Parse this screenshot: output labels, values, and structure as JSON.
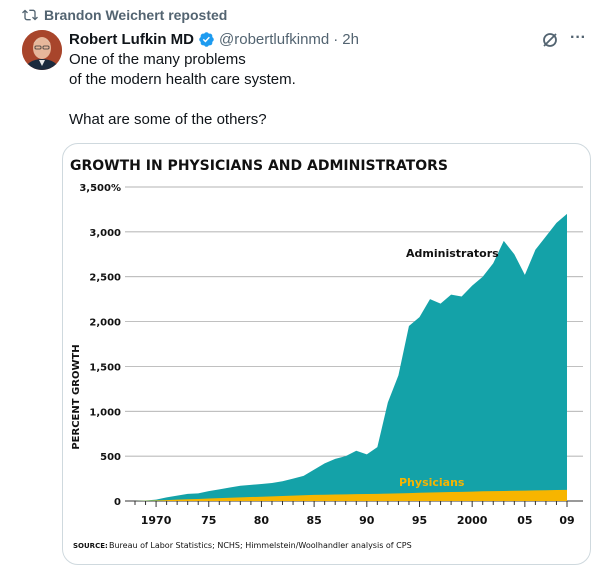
{
  "repost": {
    "text": "Brandon Weichert reposted",
    "icon": "repost-icon"
  },
  "author": {
    "name": "Robert Lufkin MD",
    "handle": "@robertlufkinmd",
    "separator": "·",
    "time": "2h",
    "verified": true
  },
  "tweet": {
    "lines": [
      "One of the many problems",
      "of the modern health care system.",
      "",
      "What are some of the others?"
    ]
  },
  "actions": {
    "grok_icon": "grok-icon",
    "more_label": "···"
  },
  "colors": {
    "admin": "#14a2a8",
    "physician": "#f7b500",
    "text_primary": "#0f1419",
    "text_secondary": "#536471",
    "verified": "#1d9bf0"
  },
  "chart_data": {
    "type": "area",
    "title": "GROWTH IN PHYSICIANS AND ADMINISTRATORS",
    "ylabel": "PERCENT GROWTH",
    "ylim": [
      0,
      3500
    ],
    "yticks": [
      "0",
      "500",
      "1,000",
      "1,500",
      "2,000",
      "2,500",
      "3,000",
      "3,500%"
    ],
    "xticks": [
      "1970",
      "75",
      "80",
      "85",
      "90",
      "95",
      "2000",
      "05",
      "09"
    ],
    "source_label": "SOURCE:",
    "source_text": "Bureau of Labor Statistics; NCHS; Himmelstein/Woolhandler analysis of CPS",
    "series": [
      {
        "name": "Administrators",
        "x": [
          1968,
          1969,
          1970,
          1971,
          1972,
          1973,
          1974,
          1975,
          1976,
          1977,
          1978,
          1979,
          1980,
          1981,
          1982,
          1983,
          1984,
          1985,
          1986,
          1987,
          1988,
          1989,
          1990,
          1991,
          1992,
          1993,
          1994,
          1995,
          1996,
          1997,
          1998,
          1999,
          2000,
          2001,
          2002,
          2003,
          2004,
          2005,
          2006,
          2007,
          2008,
          2009
        ],
        "values": [
          0,
          5,
          15,
          40,
          60,
          80,
          85,
          110,
          130,
          150,
          170,
          180,
          190,
          200,
          220,
          250,
          280,
          350,
          420,
          470,
          500,
          560,
          520,
          600,
          1100,
          1400,
          1950,
          2050,
          2250,
          2200,
          2300,
          2280,
          2400,
          2500,
          2650,
          2900,
          2750,
          2520,
          2800,
          2950,
          3100,
          3200
        ]
      },
      {
        "name": "Physicians",
        "x": [
          1968,
          1969,
          1970,
          1971,
          1972,
          1973,
          1974,
          1975,
          1976,
          1977,
          1978,
          1979,
          1980,
          1981,
          1982,
          1983,
          1984,
          1985,
          1986,
          1987,
          1988,
          1989,
          1990,
          1991,
          1992,
          1993,
          1994,
          1995,
          1996,
          1997,
          1998,
          1999,
          2000,
          2001,
          2002,
          2003,
          2004,
          2005,
          2006,
          2007,
          2008,
          2009
        ],
        "values": [
          0,
          3,
          6,
          10,
          15,
          20,
          22,
          28,
          32,
          36,
          40,
          44,
          48,
          52,
          56,
          60,
          64,
          68,
          70,
          72,
          74,
          76,
          78,
          80,
          82,
          85,
          88,
          92,
          95,
          98,
          100,
          102,
          105,
          108,
          110,
          112,
          114,
          116,
          118,
          120,
          122,
          124
        ]
      }
    ]
  }
}
